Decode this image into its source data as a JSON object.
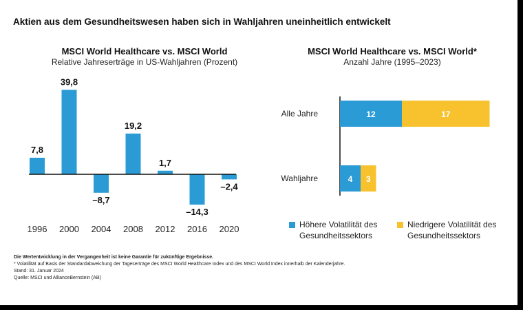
{
  "main_title": "Aktien aus dem Gesundheitswesen haben sich in Wahljahren uneinheitlich entwickelt",
  "colors": {
    "blue": "#2B9BD6",
    "yellow": "#F8C22F",
    "axis": "#111111"
  },
  "chart_data": [
    {
      "type": "bar",
      "title": "MSCI World Healthcare vs. MSCI World",
      "subtitle": "Relative Jahreserträge in US-Wahljahren (Prozent)",
      "categories": [
        "1996",
        "2000",
        "2004",
        "2008",
        "2012",
        "2016",
        "2020"
      ],
      "values": [
        7.8,
        39.8,
        -8.7,
        19.2,
        1.7,
        -14.3,
        -2.4
      ],
      "value_labels": [
        "7,8",
        "39,8",
        "–8,7",
        "19,2",
        "1,7",
        "–14,3",
        "–2,4"
      ],
      "ylim": [
        -15,
        42
      ]
    },
    {
      "type": "bar",
      "orientation": "horizontal",
      "stacked": true,
      "title": "MSCI World Healthcare vs. MSCI World*",
      "subtitle": "Anzahl Jahre (1995–2023)",
      "categories": [
        "Alle Jahre",
        "Wahljahre"
      ],
      "series": [
        {
          "name": "Höhere Volatilität des Gesundheitssektors",
          "values": [
            12,
            4
          ],
          "color": "#2B9BD6"
        },
        {
          "name": "Niedrigere Volatilität des Gesundheitssektors",
          "values": [
            17,
            3
          ],
          "color": "#F8C22F"
        }
      ],
      "xlim": [
        0,
        29
      ]
    }
  ],
  "footnotes": {
    "line1": "Die Wertentwicklung in der Vergangenheit ist keine Garantie für zukünftige Ergebnisse.",
    "line2": "* Volatilität auf Basis der Standardabweichung der Tageserträge des MSCI World Healthcare Index und des MSCI World Index innerhalb der Kalenderjahre.",
    "line3": "Stand: 31. Januar 2024",
    "line4": "Quelle: MSCI und AllianceBernstein (AB)"
  }
}
